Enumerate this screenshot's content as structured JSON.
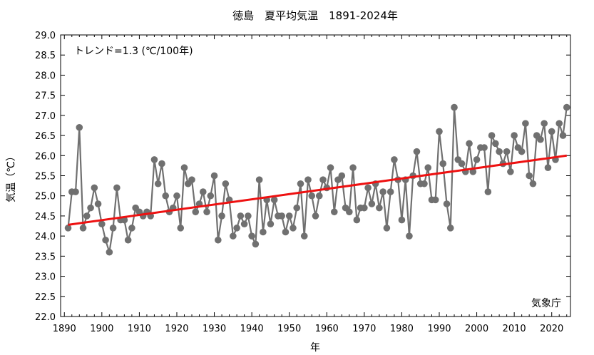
{
  "chart_data": {
    "type": "line",
    "title": "徳島　夏平均気温　1891-2024年",
    "xlabel": "年",
    "ylabel": "気温（℃）",
    "trend_label": "トレンド=1.3 (℃/100年)",
    "source": "気象庁",
    "xlim": [
      1889,
      2025
    ],
    "ylim": [
      22.0,
      29.0
    ],
    "x_ticks": [
      1890,
      1900,
      1910,
      1920,
      1930,
      1940,
      1950,
      1960,
      1970,
      1980,
      1990,
      2000,
      2010,
      2020
    ],
    "y_ticks": [
      22.0,
      22.5,
      23.0,
      23.5,
      24.0,
      24.5,
      25.0,
      25.5,
      26.0,
      26.5,
      27.0,
      27.5,
      28.0,
      28.5,
      29.0
    ],
    "y_tick_labels": [
      "22.0",
      "22.5",
      "23.0",
      "23.5",
      "24.0",
      "24.5",
      "25.0",
      "25.5",
      "26.0",
      "26.5",
      "27.0",
      "27.5",
      "28.0",
      "28.5",
      "29.0"
    ],
    "grid": false,
    "colors": {
      "series": "#707070",
      "trend": "#ee1111",
      "axis": "#000000"
    },
    "series": [
      {
        "name": "夏平均気温",
        "x_start": 1891,
        "values": [
          24.2,
          25.1,
          25.1,
          26.7,
          24.2,
          24.5,
          24.7,
          25.2,
          24.8,
          24.3,
          23.9,
          23.6,
          24.2,
          25.2,
          24.4,
          24.4,
          23.9,
          24.2,
          24.7,
          24.6,
          24.5,
          24.6,
          24.5,
          25.9,
          25.3,
          25.8,
          25.0,
          24.6,
          24.7,
          25.0,
          24.2,
          25.7,
          25.3,
          25.4,
          24.6,
          24.8,
          25.1,
          24.6,
          25.0,
          25.5,
          23.9,
          24.5,
          25.3,
          24.9,
          24.0,
          24.2,
          24.5,
          24.3,
          24.5,
          24.0,
          23.8,
          25.4,
          24.1,
          24.9,
          24.3,
          24.9,
          24.5,
          24.5,
          24.1,
          24.5,
          24.2,
          24.7,
          25.3,
          24.0,
          25.4,
          25.0,
          24.5,
          25.0,
          25.4,
          25.2,
          25.7,
          24.6,
          25.4,
          25.5,
          24.7,
          24.6,
          25.7,
          24.4,
          24.7,
          24.7,
          25.2,
          24.8,
          25.3,
          24.7,
          25.1,
          24.2,
          25.1,
          25.9,
          25.4,
          24.4,
          25.4,
          24.0,
          25.5,
          26.1,
          25.3,
          25.3,
          25.7,
          24.9,
          24.9,
          26.6,
          25.8,
          24.8,
          24.2,
          27.2,
          25.9,
          25.8,
          25.6,
          26.3,
          25.6,
          25.9,
          26.2,
          26.2,
          25.1,
          26.5,
          26.3,
          26.1,
          25.8,
          26.1,
          25.6,
          26.5,
          26.2,
          26.1,
          26.8,
          25.5,
          25.3,
          26.5,
          26.4,
          26.8,
          25.7,
          26.6,
          25.9,
          26.8,
          26.5,
          27.2
        ]
      }
    ],
    "trend": {
      "x": [
        1891,
        2024
      ],
      "y": [
        24.28,
        26.0
      ]
    }
  }
}
